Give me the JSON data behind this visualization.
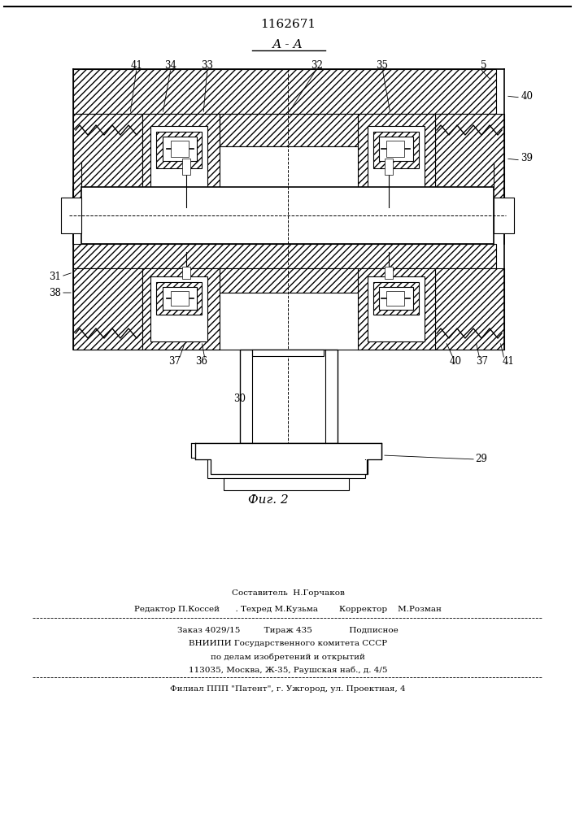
{
  "patent_number": "1162671",
  "section_label": "А - А",
  "figure_label": "Фиг. 2",
  "background_color": "#ffffff",
  "footer": {
    "line1": "Составитель  Н.Горчаков",
    "line2": "Редактор П.Коссей      . Техред М.Кузьма        Корректор    М.Розман",
    "line3": "Заказ 4029/15         Тираж 435              Подписное",
    "line4": "ВНИИПИ Государственного комитета СССР",
    "line5": "по делам изобретений и открытий",
    "line6": "113035, Москва, Ж-35, Раушская наб., д. 4/5",
    "line7": "Филиал ППП \"Патент\", г. Ужгород, ул. Проектная, 4"
  }
}
